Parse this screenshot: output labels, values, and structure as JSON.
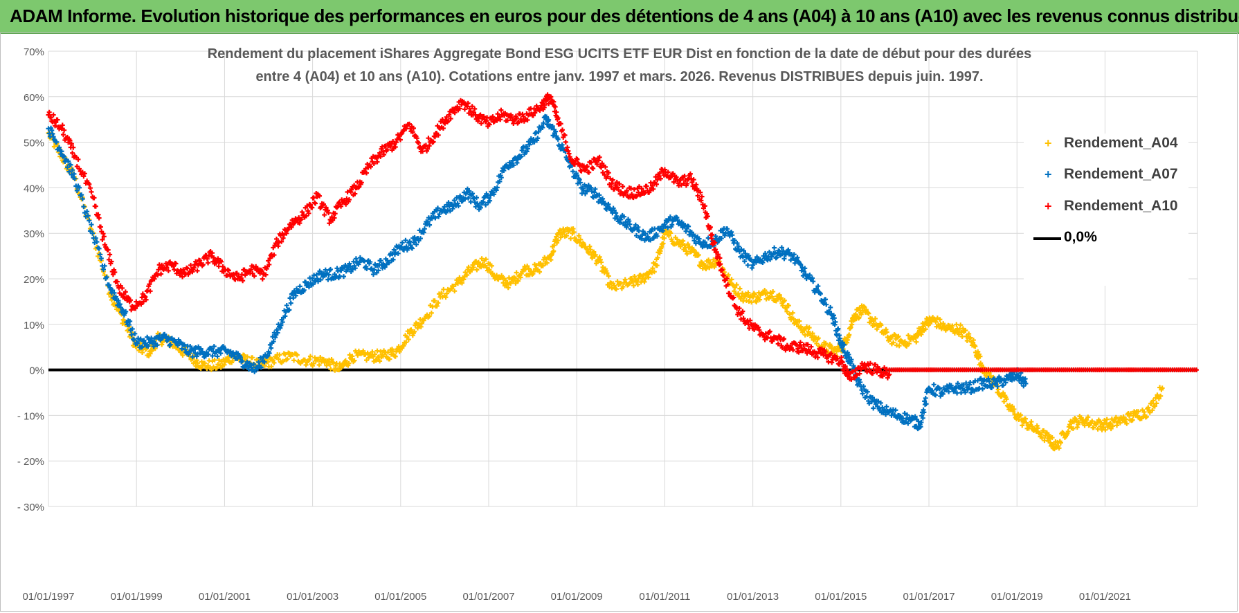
{
  "banner": {
    "text": "ADAM Informe. Evolution historique des performances en euros pour des détentions de 4 ans (A04) à 10 ans (A10) avec les revenus connus distribués"
  },
  "colors": {
    "banner_bg": "#7dc86e",
    "A04": "#ffc000",
    "A07": "#0070c0",
    "A10": "#ff0000",
    "zero_line": "#000000",
    "grid": "#d9d9d9",
    "tick_text": "#595959",
    "title_text": "#595959"
  },
  "chart_data": {
    "type": "scatter",
    "title_line1": "Rendement du placement iShares Aggregate Bond ESG UCITS ETF EUR Dist en fonction de la date de début pour des durées",
    "title_line2": "entre 4 (A04) et 10 ans (A10).  Cotations entre janv. 1997 et mars. 2026.  Revenus DISTRIBUES depuis juin. 1997.",
    "xlabel": "",
    "ylabel": "",
    "x_range": [
      1997.0,
      2023.1
    ],
    "ylim": [
      -30,
      70
    ],
    "y_ticks": [
      "70%",
      "60%",
      "50%",
      "40%",
      "30%",
      "20%",
      "10%",
      "0%",
      "- 10%",
      "- 20%",
      "- 30%"
    ],
    "x_ticks": [
      "01/01/1997",
      "01/01/1999",
      "01/01/2001",
      "01/01/2003",
      "01/01/2005",
      "01/01/2007",
      "01/01/2009",
      "01/01/2011",
      "01/01/2013",
      "01/01/2015",
      "01/01/2017",
      "01/01/2019",
      "01/01/2021"
    ],
    "grid": true,
    "legend_position": "right",
    "legend": [
      "Rendement_A04",
      "Rendement_A07",
      "Rendement_A10",
      "0,0%"
    ],
    "series": [
      {
        "name": "Rendement_A04",
        "color": "#ffc000",
        "x": [
          1997.0,
          1997.3,
          1997.6,
          1998.0,
          1998.4,
          1998.7,
          1999.0,
          1999.3,
          1999.5,
          1999.8,
          2000.2,
          2000.5,
          2000.9,
          2001.2,
          2001.5,
          2001.8,
          2002.1,
          2002.5,
          2002.9,
          2003.3,
          2003.6,
          2003.9,
          2004.3,
          2004.6,
          2004.9,
          2005.2,
          2005.5,
          2005.9,
          2006.3,
          2006.6,
          2006.9,
          2007.2,
          2007.5,
          2007.8,
          2008.1,
          2008.4,
          2008.6,
          2008.9,
          2009.2,
          2009.5,
          2009.8,
          2010.2,
          2010.5,
          2010.8,
          2011.0,
          2011.3,
          2011.6,
          2011.9,
          2012.2,
          2012.5,
          2012.8,
          2013.1,
          2013.4,
          2013.7,
          2014.0,
          2014.3,
          2014.6,
          2014.9,
          2015.1,
          2015.3,
          2015.5,
          2015.8,
          2016.1,
          2016.4,
          2016.7,
          2016.9,
          2017.1,
          2017.4,
          2017.7,
          2018.0,
          2018.2,
          2018.5,
          2018.8,
          2019.1,
          2019.4,
          2019.7,
          2019.9,
          2020.2,
          2020.5,
          2020.8,
          2021.1,
          2021.4,
          2021.7,
          2022.0,
          2022.3
        ],
        "y": [
          52,
          47,
          42,
          30,
          17,
          11,
          5,
          4,
          7,
          6,
          3,
          1,
          1,
          3,
          2,
          1,
          2,
          3,
          2,
          2,
          0,
          3,
          3,
          3,
          4,
          8,
          11,
          16,
          19,
          22,
          24,
          20,
          19,
          22,
          22,
          25,
          30,
          30,
          27,
          24,
          18,
          19,
          20,
          23,
          30,
          28,
          26,
          23,
          24,
          19,
          16,
          16,
          17,
          15,
          10,
          8,
          5,
          4,
          6,
          12,
          13,
          10,
          7,
          6,
          7,
          10,
          11,
          9,
          9,
          6,
          1,
          -3,
          -8,
          -11,
          -13,
          -15,
          -17,
          -12,
          -11,
          -12,
          -12,
          -11,
          -10,
          -9,
          -4
        ]
      },
      {
        "name": "Rendement_A07",
        "color": "#0070c0",
        "x": [
          1997.0,
          1997.3,
          1997.6,
          1998.0,
          1998.4,
          1998.7,
          1999.0,
          1999.3,
          1999.6,
          1999.9,
          2000.2,
          2000.5,
          2000.8,
          2001.1,
          2001.4,
          2001.7,
          2002.0,
          2002.3,
          2002.6,
          2002.9,
          2003.2,
          2003.5,
          2003.8,
          2004.1,
          2004.4,
          2004.7,
          2005.0,
          2005.3,
          2005.6,
          2005.9,
          2006.2,
          2006.5,
          2006.8,
          2007.1,
          2007.4,
          2007.7,
          2008.0,
          2008.3,
          2008.5,
          2008.8,
          2009.1,
          2009.4,
          2009.7,
          2010.0,
          2010.3,
          2010.6,
          2010.9,
          2011.2,
          2011.5,
          2011.8,
          2012.1,
          2012.4,
          2012.7,
          2013.0,
          2013.3,
          2013.6,
          2013.9,
          2014.2,
          2014.5,
          2014.8,
          2015.0,
          2015.2,
          2015.4,
          2015.7,
          2016.0,
          2016.3,
          2016.6,
          2016.8,
          2017.0,
          2017.3,
          2017.6,
          2017.9,
          2018.2,
          2018.5,
          2018.8,
          2019.0,
          2019.2
        ],
        "y": [
          53,
          48,
          42,
          30,
          18,
          13,
          6,
          6,
          7,
          6,
          4,
          4,
          4,
          4,
          2,
          0,
          4,
          11,
          17,
          19,
          21,
          21,
          22,
          24,
          22,
          24,
          27,
          28,
          32,
          35,
          36,
          39,
          36,
          39,
          45,
          47,
          50,
          55,
          52,
          46,
          40,
          39,
          36,
          33,
          31,
          29,
          31,
          33,
          31,
          28,
          28,
          31,
          26,
          23,
          25,
          26,
          25,
          21,
          17,
          12,
          6,
          2,
          -3,
          -7,
          -9,
          -10,
          -11,
          -12,
          -4,
          -5,
          -4,
          -4,
          -3,
          -3,
          -2,
          -1,
          -3
        ]
      },
      {
        "name": "Rendement_A10",
        "color": "#ff0000",
        "x": [
          1997.0,
          1997.3,
          1997.6,
          1998.0,
          1998.3,
          1998.6,
          1998.9,
          1999.2,
          1999.5,
          1999.8,
          2000.1,
          2000.4,
          2000.7,
          2001.0,
          2001.3,
          2001.6,
          2001.9,
          2002.2,
          2002.5,
          2002.8,
          2003.1,
          2003.4,
          2003.7,
          2004.0,
          2004.3,
          2004.6,
          2004.9,
          2005.2,
          2005.5,
          2005.8,
          2006.1,
          2006.4,
          2006.7,
          2007.0,
          2007.3,
          2007.6,
          2007.9,
          2008.2,
          2008.4,
          2008.6,
          2008.9,
          2009.2,
          2009.5,
          2009.8,
          2010.1,
          2010.4,
          2010.7,
          2011.0,
          2011.3,
          2011.6,
          2011.9,
          2012.1,
          2012.3,
          2012.6,
          2012.9,
          2013.2,
          2013.5,
          2013.8,
          2014.1,
          2014.4,
          2014.7,
          2015.0,
          2015.2,
          2015.5,
          2015.8,
          2016.1
        ],
        "y": [
          56,
          53,
          47,
          38,
          27,
          18,
          14,
          16,
          22,
          23,
          21,
          23,
          25,
          22,
          20,
          22,
          21,
          28,
          32,
          34,
          38,
          33,
          37,
          40,
          45,
          48,
          50,
          54,
          48,
          52,
          56,
          59,
          56,
          54,
          56,
          55,
          56,
          58,
          60,
          54,
          46,
          44,
          46,
          41,
          39,
          39,
          40,
          44,
          41,
          42,
          36,
          28,
          22,
          14,
          10,
          8,
          7,
          5,
          5,
          4,
          3,
          2,
          -2,
          1,
          0,
          -1
        ]
      }
    ],
    "flat_zero_series": {
      "name": "Rendement_A10",
      "x_start": 2016.1,
      "x_end": 2023.1,
      "y": 0
    },
    "reference_line": {
      "name": "0,0%",
      "y": 0
    }
  }
}
